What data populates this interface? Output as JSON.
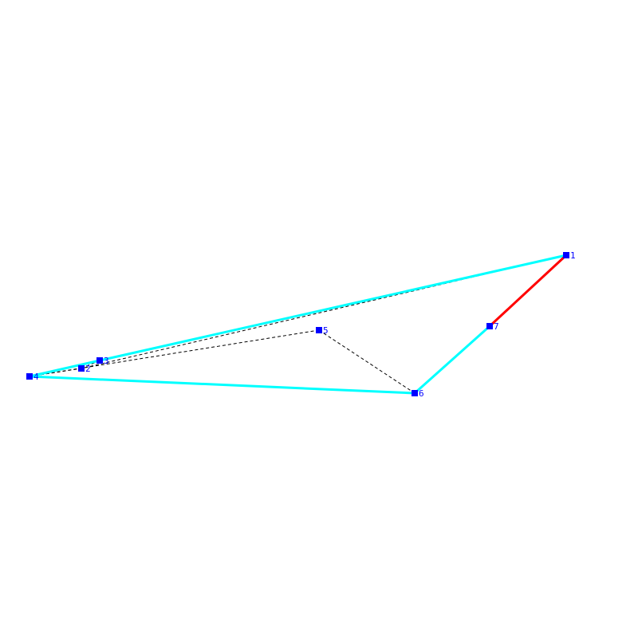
{
  "colors": {
    "background": "#ffffff",
    "vertex": "#0000ff",
    "label": "#0000ff",
    "hull_edge": "#00ffff",
    "highlight_edge": "#ff0000",
    "dashed_edge": "#000000"
  },
  "vertices": [
    {
      "id": "1",
      "label": "1"
    },
    {
      "id": "2",
      "label": "2"
    },
    {
      "id": "3",
      "label": "3"
    },
    {
      "id": "4",
      "label": "4"
    },
    {
      "id": "5",
      "label": "5"
    },
    {
      "id": "6",
      "label": "6"
    },
    {
      "id": "7",
      "label": "7"
    }
  ],
  "edges": {
    "dashed": [
      [
        "1",
        "2"
      ],
      [
        "2",
        "3"
      ],
      [
        "3",
        "4"
      ],
      [
        "4",
        "5"
      ],
      [
        "5",
        "6"
      ],
      [
        "6",
        "7"
      ],
      [
        "7",
        "1"
      ],
      [
        "4",
        "2"
      ]
    ],
    "hull": [
      [
        "1",
        "3"
      ],
      [
        "3",
        "4"
      ],
      [
        "4",
        "6"
      ],
      [
        "6",
        "7"
      ]
    ],
    "highlight": [
      [
        "7",
        "1"
      ]
    ]
  }
}
